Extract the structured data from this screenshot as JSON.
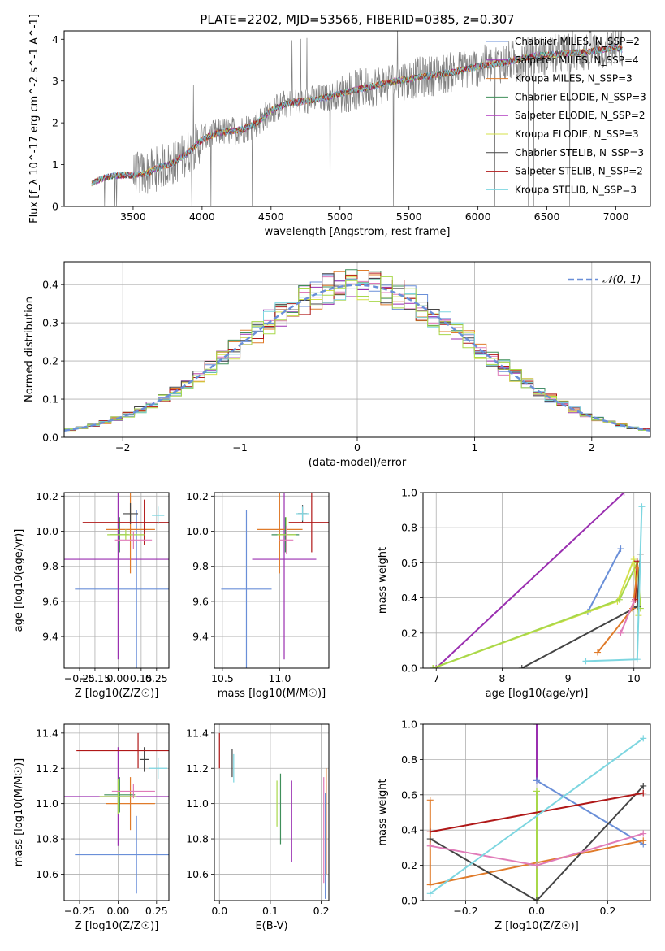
{
  "figure": {
    "title": "PLATE=2202, MJD=53566, FIBERID=0385, z=0.307",
    "colors": {
      "Chabrier MILES": "#6a8fd8",
      "Salpeter MILES": "#9a2fb0",
      "Kroupa MILES": "#e07b2a",
      "Chabrier ELODIE": "#3f8f5a",
      "Salpeter ELODIE": "#b03ac0",
      "Kroupa ELODIE": "#d4e04a",
      "Chabrier STELIB": "#444444",
      "Salpeter STELIB": "#b01818",
      "Kroupa STELIB": "#7dd6e0",
      "Pink": "#e07bb8",
      "Lime": "#a8d84a"
    }
  },
  "chart_data": [
    {
      "id": "spectrum",
      "type": "line",
      "xlabel": "wavelength [Angstrom, rest frame]",
      "ylabel": "Flux [f_λ 10^-17 erg cm^-2 s^-1 A^-1]",
      "xlim": [
        3000,
        7250
      ],
      "ylim": [
        0,
        4.2
      ],
      "xticks": [
        3500,
        4000,
        4500,
        5000,
        5500,
        6000,
        6500,
        7000
      ],
      "yticks": [
        0,
        1,
        2,
        3,
        4
      ],
      "data_color": "#808080",
      "continuum": {
        "x": [
          3200,
          3300,
          3400,
          3500,
          3600,
          3700,
          3800,
          3900,
          4000,
          4100,
          4200,
          4300,
          4400,
          4500,
          4600,
          4700,
          4800,
          4900,
          5000,
          5200,
          5400,
          5600,
          5800,
          6000,
          6200,
          6400,
          6600,
          6800,
          7000,
          7050
        ],
        "y": [
          0.55,
          0.7,
          0.75,
          0.75,
          0.8,
          0.95,
          1.05,
          1.3,
          1.6,
          1.75,
          1.8,
          1.85,
          2.0,
          2.3,
          2.45,
          2.5,
          2.55,
          2.6,
          2.7,
          2.85,
          3.0,
          3.1,
          3.2,
          3.35,
          3.45,
          3.6,
          3.65,
          3.7,
          3.8,
          3.75
        ]
      },
      "legend": [
        {
          "label": "Chabrier MILES, N_SSP=2",
          "color_key": "Chabrier MILES"
        },
        {
          "label": "Salpeter MILES, N_SSP=4",
          "color_key": "Salpeter MILES"
        },
        {
          "label": "Kroupa MILES, N_SSP=3",
          "color_key": "Kroupa MILES"
        },
        {
          "label": "Chabrier ELODIE, N_SSP=3",
          "color_key": "Chabrier ELODIE"
        },
        {
          "label": "Salpeter ELODIE, N_SSP=2",
          "color_key": "Salpeter ELODIE"
        },
        {
          "label": "Kroupa ELODIE, N_SSP=3",
          "color_key": "Kroupa ELODIE"
        },
        {
          "label": "Chabrier STELIB, N_SSP=3",
          "color_key": "Chabrier STELIB"
        },
        {
          "label": "Salpeter STELIB, N_SSP=2",
          "color_key": "Salpeter STELIB"
        },
        {
          "label": "Kroupa STELIB, N_SSP=3",
          "color_key": "Kroupa STELIB"
        }
      ]
    },
    {
      "id": "residuals",
      "type": "step",
      "xlabel": "(data-model)/error",
      "ylabel": "Normed distribution",
      "xlim": [
        -2.5,
        2.5
      ],
      "ylim": [
        0,
        0.46
      ],
      "xticks": [
        -2,
        -1,
        0,
        1,
        2
      ],
      "yticks": [
        0.0,
        0.1,
        0.2,
        0.3,
        0.4
      ],
      "grid": true,
      "legend": [
        {
          "label": "𝒩(0, 1)",
          "color": "#6a8fd8"
        }
      ]
    },
    {
      "id": "age_vs_Z",
      "type": "errorbar",
      "xlabel": "Z [log10(Z/Z☉)]",
      "ylabel": "age [log10(age/yr)]",
      "xlim": [
        -0.35,
        0.33
      ],
      "ylim": [
        9.22,
        10.22
      ],
      "xticks": [
        -0.25,
        -0.15,
        0.0,
        0.15,
        0.25
      ],
      "yticks": [
        9.4,
        9.6,
        9.8,
        10.0,
        10.2
      ],
      "grid": true,
      "points": [
        {
          "x": 0.12,
          "y": 9.67,
          "xerr": 0.4,
          "yerr": 0.45,
          "c": "Chabrier MILES"
        },
        {
          "x": 0.0,
          "y": 9.84,
          "xerr": 0.4,
          "yerr": 0.57,
          "c": "Salpeter MILES"
        },
        {
          "x": 0.08,
          "y": 10.01,
          "xerr": 0.16,
          "yerr": 0.25,
          "c": "Kroupa MILES"
        },
        {
          "x": 0.01,
          "y": 9.98,
          "xerr": 0.06,
          "yerr": 0.1,
          "c": "Chabrier ELODIE"
        },
        {
          "x": 0.08,
          "y": 10.1,
          "xerr": 0.05,
          "yerr": 0.06,
          "c": "Chabrier STELIB"
        },
        {
          "x": 0.17,
          "y": 10.05,
          "xerr": 0.4,
          "yerr": 0.13,
          "c": "Salpeter STELIB"
        },
        {
          "x": 0.26,
          "y": 10.09,
          "xerr": 0.04,
          "yerr": 0.05,
          "c": "Kroupa STELIB"
        },
        {
          "x": 0.05,
          "y": 9.98,
          "xerr": 0.12,
          "yerr": 0.03,
          "c": "Lime"
        },
        {
          "x": 0.1,
          "y": 9.95,
          "xerr": 0.12,
          "yerr": 0.05,
          "c": "Pink"
        }
      ]
    },
    {
      "id": "age_vs_mass",
      "type": "errorbar",
      "xlabel": "mass [log10(M/M☉)]",
      "ylabel": "",
      "xlim": [
        10.43,
        11.43
      ],
      "ylim": [
        9.22,
        10.22
      ],
      "xticks": [
        10.5,
        11.0
      ],
      "yticks": [
        9.4,
        9.6,
        9.8,
        10.0,
        10.2
      ],
      "grid": true,
      "points": [
        {
          "x": 10.71,
          "y": 9.67,
          "xerr": 0.22,
          "yerr": 0.45,
          "c": "Chabrier MILES"
        },
        {
          "x": 11.04,
          "y": 9.84,
          "xerr": 0.28,
          "yerr": 0.57,
          "c": "Salpeter MILES"
        },
        {
          "x": 11.0,
          "y": 10.01,
          "xerr": 0.2,
          "yerr": 0.25,
          "c": "Kroupa MILES"
        },
        {
          "x": 11.05,
          "y": 9.98,
          "xerr": 0.12,
          "yerr": 0.1,
          "c": "Chabrier ELODIE"
        },
        {
          "x": 11.2,
          "y": 10.1,
          "xerr": 0.04,
          "yerr": 0.05,
          "c": "Chabrier STELIB"
        },
        {
          "x": 11.28,
          "y": 10.05,
          "xerr": 0.2,
          "yerr": 0.17,
          "c": "Salpeter STELIB"
        },
        {
          "x": 11.2,
          "y": 10.1,
          "xerr": 0.06,
          "yerr": 0.04,
          "c": "Kroupa STELIB"
        },
        {
          "x": 11.06,
          "y": 9.98,
          "xerr": 0.08,
          "yerr": 0.1,
          "c": "Lime"
        },
        {
          "x": 11.06,
          "y": 9.95,
          "xerr": 0.06,
          "yerr": 0.08,
          "c": "Pink"
        }
      ]
    },
    {
      "id": "weight_vs_age",
      "type": "line",
      "xlabel": "age [log10(age/yr)]",
      "ylabel": "mass weight",
      "xlim": [
        6.8,
        10.25
      ],
      "ylim": [
        0,
        1.0
      ],
      "xticks": [
        7,
        8,
        9,
        10
      ],
      "yticks": [
        0.0,
        0.2,
        0.4,
        0.6,
        0.8,
        1.0
      ],
      "grid": true,
      "lines": [
        {
          "c": "Salpeter MILES",
          "x": [
            7.0,
            9.85
          ],
          "y": [
            0.0,
            1.0
          ]
        },
        {
          "c": "Chabrier MILES",
          "x": [
            9.3,
            9.8
          ],
          "y": [
            0.32,
            0.68
          ]
        },
        {
          "c": "Kroupa ELODIE",
          "x": [
            6.95,
            9.75,
            10.0,
            10.07
          ],
          "y": [
            0.0,
            0.38,
            0.62,
            0.3
          ]
        },
        {
          "c": "Lime",
          "x": [
            6.95,
            9.78,
            10.05,
            10.1
          ],
          "y": [
            0.0,
            0.39,
            0.6,
            0.34
          ]
        },
        {
          "c": "Chabrier STELIB",
          "x": [
            8.3,
            10.05,
            10.1
          ],
          "y": [
            0.0,
            0.35,
            0.65
          ]
        },
        {
          "c": "Salpeter STELIB",
          "x": [
            10.02,
            10.05
          ],
          "y": [
            0.39,
            0.61
          ]
        },
        {
          "c": "Kroupa MILES",
          "x": [
            9.45,
            9.98,
            10.06
          ],
          "y": [
            0.09,
            0.34,
            0.57
          ]
        },
        {
          "c": "Pink",
          "x": [
            9.8,
            10.0
          ],
          "y": [
            0.2,
            0.38
          ]
        },
        {
          "c": "Kroupa STELIB",
          "x": [
            9.27,
            10.05,
            10.12
          ],
          "y": [
            0.04,
            0.05,
            0.92
          ]
        }
      ]
    },
    {
      "id": "mass_vs_Z",
      "type": "errorbar",
      "xlabel": "Z [log10(Z/Z☉)]",
      "ylabel": "mass [log10(M/M☉)]",
      "xlim": [
        -0.35,
        0.33
      ],
      "ylim": [
        10.45,
        11.45
      ],
      "xticks": [
        -0.25,
        0.0,
        0.25
      ],
      "yticks": [
        10.6,
        10.8,
        11.0,
        11.2,
        11.4
      ],
      "grid": true,
      "points": [
        {
          "x": 0.12,
          "y": 10.71,
          "xerr": 0.4,
          "yerr": 0.22,
          "c": "Chabrier MILES"
        },
        {
          "x": 0.0,
          "y": 11.04,
          "xerr": 0.4,
          "yerr": 0.28,
          "c": "Salpeter MILES"
        },
        {
          "x": 0.08,
          "y": 11.0,
          "xerr": 0.16,
          "yerr": 0.15,
          "c": "Kroupa MILES"
        },
        {
          "x": 0.01,
          "y": 11.05,
          "xerr": 0.1,
          "yerr": 0.1,
          "c": "Chabrier ELODIE"
        },
        {
          "x": 0.17,
          "y": 11.25,
          "xerr": 0.03,
          "yerr": 0.07,
          "c": "Chabrier STELIB"
        },
        {
          "x": 0.13,
          "y": 11.3,
          "xerr": 0.4,
          "yerr": 0.1,
          "c": "Salpeter STELIB"
        },
        {
          "x": 0.26,
          "y": 11.2,
          "xerr": 0.06,
          "yerr": 0.06,
          "c": "Kroupa STELIB"
        },
        {
          "x": 0.0,
          "y": 11.04,
          "xerr": 0.12,
          "yerr": 0.1,
          "c": "Lime"
        },
        {
          "x": 0.1,
          "y": 11.07,
          "xerr": 0.14,
          "yerr": 0.04,
          "c": "Pink"
        }
      ]
    },
    {
      "id": "mass_vs_ebv",
      "type": "errorbar",
      "xlabel": "E(B-V)",
      "ylabel": "",
      "xlim": [
        -0.01,
        0.215
      ],
      "ylim": [
        10.45,
        11.45
      ],
      "xticks": [
        0.0,
        0.1,
        0.2
      ],
      "yticks": [
        10.6,
        10.8,
        11.0,
        11.2,
        11.4
      ],
      "grid": true,
      "points": [
        {
          "x": 0.0,
          "y": 11.3,
          "xerr": 0,
          "yerr": 0.1,
          "c": "Salpeter STELIB"
        },
        {
          "x": 0.025,
          "y": 11.23,
          "xerr": 0,
          "yerr": 0.08,
          "c": "Chabrier STELIB"
        },
        {
          "x": 0.028,
          "y": 11.2,
          "xerr": 0,
          "yerr": 0.08,
          "c": "Kroupa STELIB"
        },
        {
          "x": 0.113,
          "y": 11.0,
          "xerr": 0,
          "yerr": 0.13,
          "c": "Lime"
        },
        {
          "x": 0.12,
          "y": 10.97,
          "xerr": 0,
          "yerr": 0.2,
          "c": "Chabrier ELODIE"
        },
        {
          "x": 0.142,
          "y": 10.9,
          "xerr": 0,
          "yerr": 0.23,
          "c": "Salpeter MILES"
        },
        {
          "x": 0.205,
          "y": 10.85,
          "xerr": 0,
          "yerr": 0.3,
          "c": "Pink"
        },
        {
          "x": 0.208,
          "y": 10.76,
          "xerr": 0,
          "yerr": 0.3,
          "c": "Chabrier MILES"
        },
        {
          "x": 0.21,
          "y": 10.9,
          "xerr": 0,
          "yerr": 0.3,
          "c": "Kroupa MILES"
        }
      ]
    },
    {
      "id": "weight_vs_Z",
      "type": "line",
      "xlabel": "Z [log10(Z/Z☉)]",
      "ylabel": "mass weight",
      "xlim": [
        -0.32,
        0.32
      ],
      "ylim": [
        0,
        1.0
      ],
      "xticks": [
        -0.2,
        0.0,
        0.2
      ],
      "yticks": [
        0.0,
        0.2,
        0.4,
        0.6,
        0.8,
        1.0
      ],
      "grid": true,
      "lines": [
        {
          "c": "Salpeter MILES",
          "x": [
            0.0,
            0.0
          ],
          "y": [
            0.68,
            1.0
          ]
        },
        {
          "c": "Chabrier MILES",
          "x": [
            0.0,
            0.3
          ],
          "y": [
            0.68,
            0.32
          ]
        },
        {
          "c": "Kroupa MILES",
          "x": [
            -0.3,
            -0.3,
            0.3
          ],
          "y": [
            0.57,
            0.09,
            0.34
          ]
        },
        {
          "c": "Kroupa ELODIE",
          "x": [
            0.0,
            0.0
          ],
          "y": [
            0.0,
            0.62
          ]
        },
        {
          "c": "Lime",
          "x": [
            0.0,
            0.0
          ],
          "y": [
            0.0,
            0.62
          ]
        },
        {
          "c": "Chabrier STELIB",
          "x": [
            -0.3,
            0.0,
            0.3
          ],
          "y": [
            0.35,
            0.0,
            0.65
          ]
        },
        {
          "c": "Salpeter STELIB",
          "x": [
            -0.3,
            0.3
          ],
          "y": [
            0.39,
            0.61
          ]
        },
        {
          "c": "Pink",
          "x": [
            -0.3,
            0.0,
            0.3
          ],
          "y": [
            0.31,
            0.2,
            0.38
          ]
        },
        {
          "c": "Kroupa STELIB",
          "x": [
            -0.3,
            0.3
          ],
          "y": [
            0.04,
            0.92
          ]
        }
      ]
    }
  ]
}
